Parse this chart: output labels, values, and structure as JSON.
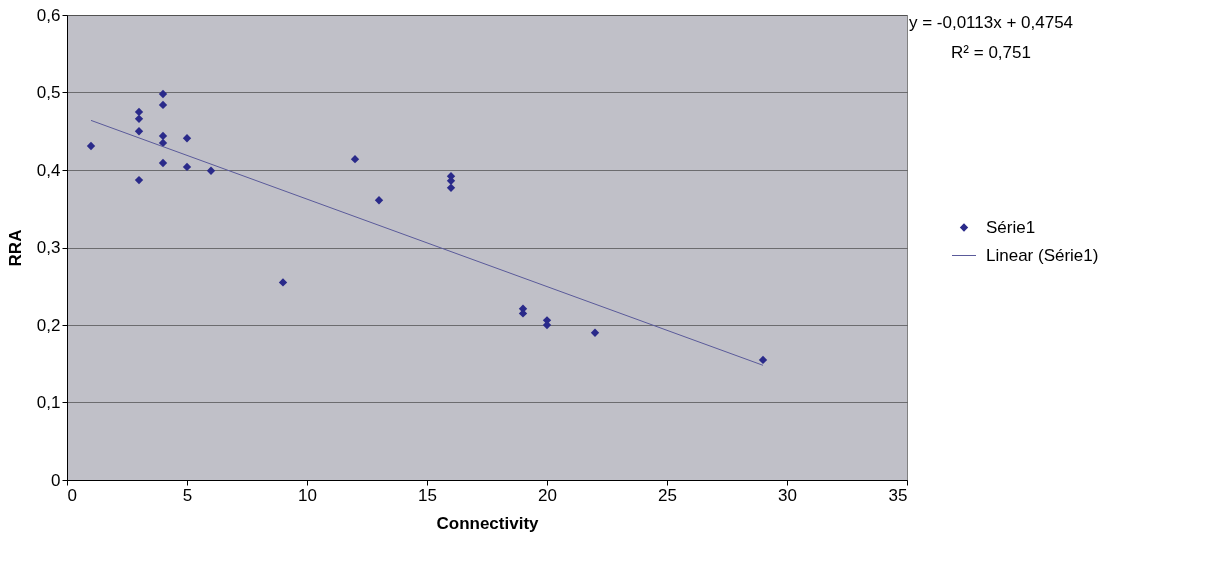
{
  "chart_data": {
    "type": "scatter",
    "xlabel": "Connectivity",
    "ylabel": "RRA",
    "xlim": [
      0,
      35
    ],
    "xticks": [
      0,
      5,
      10,
      15,
      20,
      25,
      30,
      35
    ],
    "ylim": [
      0,
      0.6
    ],
    "yticks": [
      {
        "value": 0,
        "label": "0"
      },
      {
        "value": 0.1,
        "label": "0,1"
      },
      {
        "value": 0.2,
        "label": "0,2"
      },
      {
        "value": 0.3,
        "label": "0,3"
      },
      {
        "value": 0.4,
        "label": "0,4"
      },
      {
        "value": 0.5,
        "label": "0,5"
      },
      {
        "value": 0.6,
        "label": "0,6"
      }
    ],
    "grid": "y",
    "legend": "right",
    "annotations": [
      "y = -0,0113x + 0,4754",
      "R² = 0,751"
    ],
    "series": [
      {
        "name": "Série1",
        "marker": "diamond",
        "color": "#2a2a8a",
        "x": [
          1,
          3,
          3,
          3,
          3,
          4,
          4,
          4,
          4,
          4,
          5,
          5,
          6,
          9,
          12,
          13,
          16,
          16,
          16,
          19,
          19,
          20,
          20,
          22,
          29
        ],
        "values": [
          0.431,
          0.475,
          0.466,
          0.45,
          0.387,
          0.498,
          0.484,
          0.444,
          0.435,
          0.409,
          0.441,
          0.404,
          0.399,
          0.255,
          0.414,
          0.361,
          0.392,
          0.386,
          0.377,
          0.221,
          0.215,
          0.206,
          0.2,
          0.19,
          0.155
        ]
      },
      {
        "name": "Linear (Série1)",
        "type": "line",
        "color": "#5a5a9a",
        "x": [
          1,
          29
        ],
        "values": [
          0.464,
          0.148
        ]
      }
    ]
  }
}
